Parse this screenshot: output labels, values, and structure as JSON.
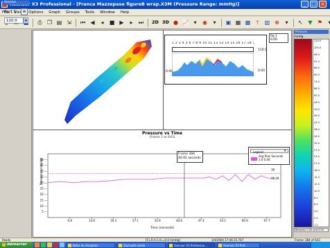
{
  "window": {
    "title": "Xsensor X3 Professional - [Franca Mazzepase figureB wrap.X3M (Pressure Range: mmHg)]"
  },
  "menu": {
    "items": [
      "File",
      "View",
      "Options",
      "Graph",
      "Groups",
      "Tools",
      "Window",
      "Help"
    ]
  },
  "toolbar": {
    "text_buttons": [
      "2D",
      "3D"
    ]
  },
  "sidebar": {
    "header": "Session",
    "part_label": "Part 1",
    "zoom_value": "110.0"
  },
  "mini_chart": {
    "tick_labels": "1 2 3 4 5 6 7 8 9 10 11 12 13 14 15 16 17 18 19 20 21",
    "top_value": "110.0",
    "bottom_value": "0.00",
    "left_value": "0.00"
  },
  "small_box": {
    "label": "Pg 1",
    "value": "0.00"
  },
  "chart_data": {
    "type": "line",
    "title": "Pressure vs Time",
    "subtitle": "(frame 1 to 643)",
    "xlabel": "Time (seconds)",
    "ylabel": "Pressure (mmHg)",
    "ylim": [
      0,
      55
    ],
    "y_ticks": [
      "50 —",
      "45 —",
      "40 —",
      "35 —",
      "30 —",
      "25 —",
      "20 —",
      "15 —",
      "10 —",
      "5 —"
    ],
    "x_ticks": [
      "6.8",
      "13.6",
      "20.3",
      "27.1",
      "33.9",
      "40.6",
      "47.4",
      "54.1",
      "60.9",
      "67.7"
    ],
    "xlim": [
      0,
      72
    ],
    "x": [
      0,
      4,
      8,
      12,
      16,
      20,
      24,
      28,
      32,
      36,
      40,
      44,
      48,
      50,
      52,
      54,
      56,
      58,
      60,
      62,
      64,
      66,
      68,
      70
    ],
    "series": [
      {
        "name": "Avg Pres",
        "color": "#e066e0",
        "values": [
          30,
          31,
          30,
          31,
          31,
          32,
          33,
          33,
          33,
          34,
          34,
          34,
          34,
          35,
          33,
          36,
          32,
          37,
          31,
          37,
          33,
          36,
          34,
          34
        ]
      }
    ],
    "reference_line": {
      "value": 38.1,
      "label_right": "38"
    },
    "right_labels": [
      "38",
      "28.49"
    ],
    "cursor": {
      "x": 42.2,
      "label": "Frame 384",
      "value": "40.91 seconds"
    },
    "legend": {
      "header": "Legend",
      "columns": "Avg Pres    Seconds",
      "values": "1.0         0.00"
    }
  },
  "colorbar": {
    "header": "Pressure",
    "unit": "mmHg",
    "ticks": [
      "110.0",
      "104.0",
      "98.0",
      "92.0",
      "86.0",
      "80.0",
      "74.0",
      "68.0",
      "62.0",
      "56.0",
      "50.0",
      "46.0",
      "42.0",
      "38.0",
      "34.0",
      "30.0",
      "27.0",
      "24.0",
      "21.0",
      "18.0",
      "15.0",
      "12.0",
      "10.0",
      "8.0",
      "6.0",
      "4.0",
      "2.0",
      "1.0"
    ],
    "footer": "Between 0.00 and 0.00"
  },
  "status": {
    "ready": "Ready",
    "source": "[F.L.R.A.C.O.=0,0 mmHg]",
    "date": "3/4/2004     17:46:15.707",
    "frame": "Frame: 384 of 643"
  },
  "taskbar": {
    "start": "démarrer",
    "tasks": [
      "Boîte de réception",
      "Zeal with Leslie",
      "Xsensor X3 Profession...",
      "Xsensor X3 Prof..."
    ]
  }
}
